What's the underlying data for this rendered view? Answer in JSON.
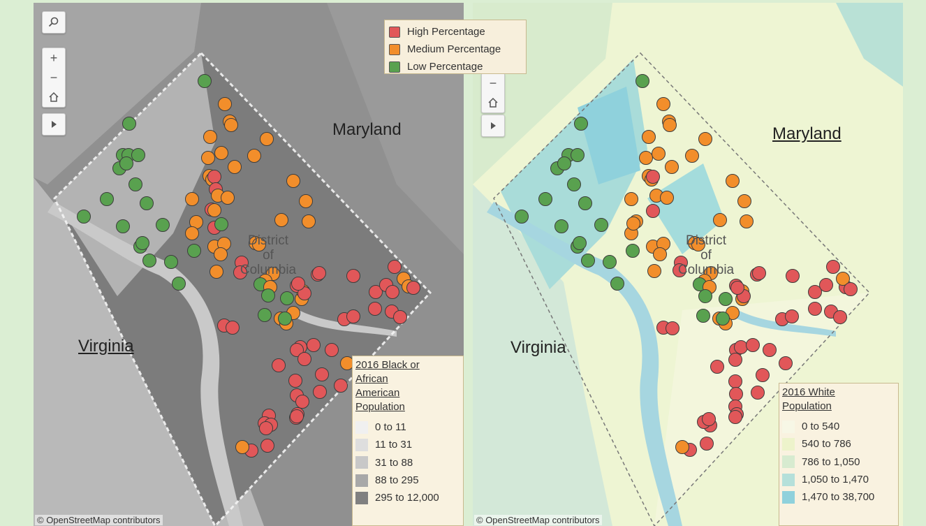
{
  "controls": {
    "search_icon": "magnifier-icon",
    "zoom_in": "+",
    "zoom_out": "−",
    "home_icon": "home-icon",
    "play_icon": "play-icon"
  },
  "attribution": "© OpenStreetMap contributors",
  "labels": {
    "maryland": "Maryland",
    "virginia": "Virginia",
    "dc_line1": "District",
    "dc_line2": "of",
    "dc_line3": "Columbia"
  },
  "category_legend": {
    "items": [
      {
        "label": "High Percentage",
        "color": "#e15759"
      },
      {
        "label": "Medium Percentage",
        "color": "#f28e2b"
      },
      {
        "label": "Low Percentage",
        "color": "#59a14f"
      }
    ]
  },
  "left_legend": {
    "title": "2016 Black or African American Population",
    "items": [
      {
        "label": "0 to 11",
        "color": "#f0f0f0"
      },
      {
        "label": "11 to 31",
        "color": "#dedede"
      },
      {
        "label": "31 to 88",
        "color": "#c8c8c8"
      },
      {
        "label": "88 to 295",
        "color": "#a8a8a8"
      },
      {
        "label": "295 to 12,000",
        "color": "#808080"
      }
    ]
  },
  "right_legend": {
    "title": "2016 White Population",
    "items": [
      {
        "label": "0 to 540",
        "color": "#f7f7e6"
      },
      {
        "label": "540 to 786",
        "color": "#edf3cb"
      },
      {
        "label": "786 to 1,050",
        "color": "#d7ebd0"
      },
      {
        "label": "1,050 to 1,470",
        "color": "#b5e0da"
      },
      {
        "label": "1,470 to 38,700",
        "color": "#8fd1dc"
      }
    ]
  },
  "colors": {
    "high": "#e15759",
    "medium": "#f28e2b",
    "low": "#59a14f"
  }
}
